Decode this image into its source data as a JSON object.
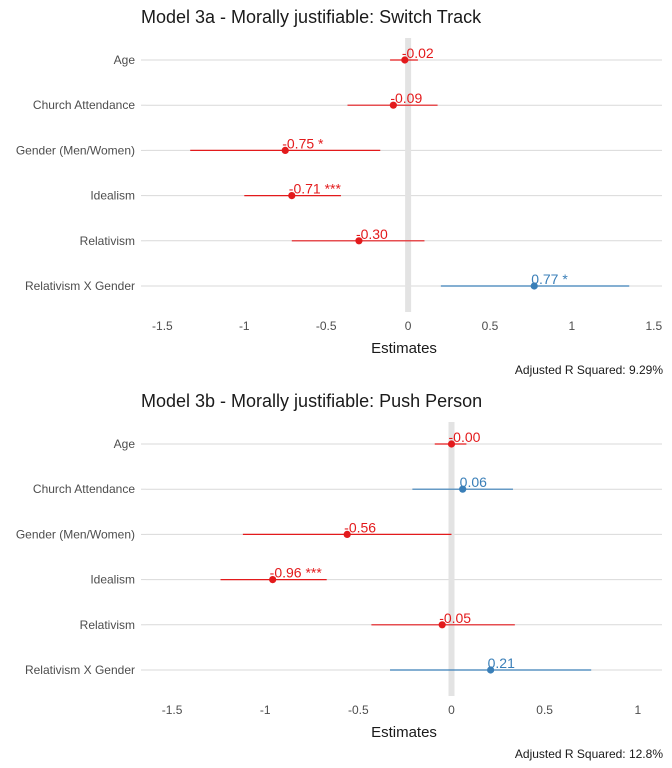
{
  "chart_data": [
    {
      "type": "forest",
      "title": "Model 3a - Morally justifiable: Switch Track",
      "xlabel": "Estimates",
      "xlim": [
        -1.6,
        1.55
      ],
      "xticks": [
        -1.5,
        -1,
        -0.5,
        0,
        0.5,
        1,
        1.5
      ],
      "xtick_labels": [
        "-1.5",
        "-1",
        "-0.5",
        "0",
        "0.5",
        "1",
        "1.5"
      ],
      "grid": true,
      "reference_line": 0,
      "footnote": "Adjusted R Squared: 9.29%",
      "terms": [
        "Age",
        "Church Attendance",
        "Gender (Men/Women)",
        "Idealism",
        "Relativism",
        "Relativism X Gender"
      ],
      "estimates": [
        -0.02,
        -0.09,
        -0.75,
        -0.71,
        -0.3,
        0.77
      ],
      "ci_low": [
        -0.11,
        -0.37,
        -1.33,
        -1.0,
        -0.71,
        0.2
      ],
      "ci_high": [
        0.06,
        0.18,
        -0.17,
        -0.41,
        0.1,
        1.35
      ],
      "labels": [
        "-0.02",
        "-0.09",
        "-0.75 *",
        "-0.71 ***",
        "-0.30",
        "0.77 *"
      ]
    },
    {
      "type": "forest",
      "title": "Model 3b - Morally justifiable: Push Person",
      "xlabel": "Estimates",
      "xlim": [
        -1.64,
        1.13
      ],
      "xticks": [
        -1.5,
        -1,
        -0.5,
        0,
        0.5,
        1
      ],
      "xtick_labels": [
        "-1.5",
        "-1",
        "-0.5",
        "0",
        "0.5",
        "1"
      ],
      "grid": true,
      "reference_line": 0,
      "footnote": "Adjusted R Squared: 12.8%",
      "terms": [
        "Age",
        "Church Attendance",
        "Gender (Men/Women)",
        "Idealism",
        "Relativism",
        "Relativism X Gender"
      ],
      "estimates": [
        -0.0,
        0.06,
        -0.56,
        -0.96,
        -0.05,
        0.21
      ],
      "ci_low": [
        -0.09,
        -0.21,
        -1.12,
        -1.24,
        -0.43,
        -0.33
      ],
      "ci_high": [
        0.08,
        0.33,
        0.0,
        -0.67,
        0.34,
        0.75
      ],
      "labels": [
        "-0.00",
        "0.06",
        "-0.56",
        "-0.96 ***",
        "-0.05",
        "0.21"
      ]
    }
  ],
  "colors": {
    "negative": "#e31a1c",
    "positive": "#3a7fb8",
    "grid": "#d9d9d9",
    "reference": "#e3e3e3",
    "text": "#1a1a1a",
    "axis_text": "#4d4d4d"
  }
}
